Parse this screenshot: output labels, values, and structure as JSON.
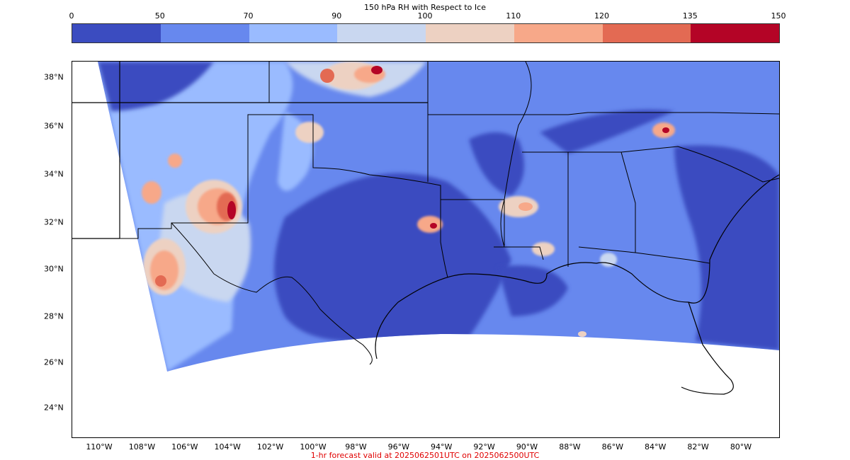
{
  "colorbar": {
    "title": "150 hPa RH with Respect to Ice",
    "ticks": [
      "0",
      "50",
      "70",
      "90",
      "100",
      "110",
      "120",
      "135",
      "150"
    ],
    "colors": [
      "#3b4cc0",
      "#6788ee",
      "#9abbff",
      "#c9d7f0",
      "#edd1c2",
      "#f7a889",
      "#e36a53",
      "#b40426"
    ]
  },
  "map": {
    "lat_labels": [
      "38°N",
      "36°N",
      "34°N",
      "32°N",
      "30°N",
      "28°N",
      "26°N",
      "24°N"
    ],
    "lon_labels": [
      "110°W",
      "108°W",
      "106°W",
      "104°W",
      "102°W",
      "100°W",
      "98°W",
      "96°W",
      "94°W",
      "92°W",
      "90°W",
      "88°W",
      "86°W",
      "84°W",
      "82°W",
      "80°W"
    ],
    "land_color": "#ffffff",
    "background_color": "#ffffff",
    "border_color": "#000000"
  },
  "footer": {
    "text": "1-hr forecast valid at 2025062501UTC on 2025062500UTC",
    "color": "#e00000"
  }
}
